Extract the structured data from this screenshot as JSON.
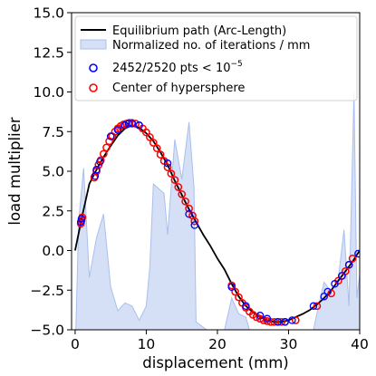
{
  "chart_data": {
    "type": "line",
    "xlabel": "displacement (mm)",
    "ylabel": "load multiplier",
    "xlim": [
      -0.5,
      40
    ],
    "ylim": [
      -5.0,
      15.0
    ],
    "xticks": [
      0,
      10,
      20,
      30,
      40
    ],
    "yticks": [
      -5.0,
      -2.5,
      0.0,
      2.5,
      5.0,
      7.5,
      10.0,
      12.5,
      15.0
    ],
    "ytick_labels": [
      "−5.0",
      "−2.5",
      "0.0",
      "2.5",
      "5.0",
      "7.5",
      "10.0",
      "12.5",
      "15.0"
    ],
    "xtick_labels": [
      "0",
      "10",
      "20",
      "30",
      "40"
    ],
    "grid": false,
    "legend_position": "top-right",
    "colors": {
      "equilibrium_path": "#000000",
      "iterations_fill": "#d5e0f6",
      "iterations_edge": "#a9bfee",
      "converged_points": "#0000ff",
      "center_points": "#ff0000"
    },
    "legend": [
      {
        "label": "Equilibrium path (Arc-Length)",
        "kind": "line"
      },
      {
        "label": "Normalized no. of iterations / mm",
        "kind": "area"
      },
      {
        "label_prefix": "2452/2520 pts < 10",
        "label_exponent": "−5",
        "kind": "open-circle-blue"
      },
      {
        "label": "Center of hypersphere",
        "kind": "open-circle-red"
      }
    ],
    "series": [
      {
        "name": "Equilibrium path (Arc-Length)",
        "type": "line",
        "points": [
          [
            0,
            0
          ],
          [
            1,
            2.2
          ],
          [
            2,
            4.2
          ],
          [
            3,
            5.1
          ],
          [
            4,
            5.9
          ],
          [
            5,
            6.6
          ],
          [
            6,
            7.25
          ],
          [
            7,
            7.7
          ],
          [
            8,
            7.9
          ],
          [
            9,
            7.75
          ],
          [
            10,
            7.4
          ],
          [
            11,
            6.9
          ],
          [
            12,
            6.2
          ],
          [
            13,
            5.4
          ],
          [
            14,
            4.4
          ],
          [
            15,
            3.5
          ],
          [
            16,
            2.6
          ],
          [
            17,
            1.8
          ],
          [
            18,
            1.0
          ],
          [
            19,
            0.3
          ],
          [
            20,
            -0.5
          ],
          [
            21,
            -1.2
          ],
          [
            22,
            -2.1
          ],
          [
            23,
            -2.9
          ],
          [
            24,
            -3.5
          ],
          [
            25,
            -3.9
          ],
          [
            26,
            -4.2
          ],
          [
            27,
            -4.4
          ],
          [
            28,
            -4.5
          ],
          [
            29,
            -4.5
          ],
          [
            30,
            -4.4
          ],
          [
            31,
            -4.2
          ],
          [
            32,
            -4.0
          ],
          [
            33,
            -3.75
          ],
          [
            34,
            -3.4
          ],
          [
            35,
            -3.0
          ],
          [
            36,
            -2.5
          ],
          [
            37,
            -1.9
          ],
          [
            38,
            -1.3
          ],
          [
            39,
            -0.7
          ],
          [
            40,
            0.0
          ]
        ]
      },
      {
        "name": "Normalized no. of iterations / mm",
        "type": "area",
        "points": [
          [
            -0.3,
            -5
          ],
          [
            0.1,
            -5
          ],
          [
            0.5,
            1.9
          ],
          [
            1.2,
            5.2
          ],
          [
            2.0,
            -1.7
          ],
          [
            3.0,
            0.8
          ],
          [
            4.0,
            2.3
          ],
          [
            5.0,
            -2.3
          ],
          [
            6.0,
            -3.8
          ],
          [
            7.0,
            -3.3
          ],
          [
            8.0,
            -3.5
          ],
          [
            9.0,
            -4.4
          ],
          [
            10.0,
            -3.5
          ],
          [
            10.5,
            -1.0
          ],
          [
            11.0,
            4.2
          ],
          [
            12.5,
            3.6
          ],
          [
            13.0,
            1.0
          ],
          [
            14.0,
            7.0
          ],
          [
            15.0,
            4.5
          ],
          [
            16.0,
            8.1
          ],
          [
            16.7,
            4.0
          ],
          [
            17.0,
            -4.5
          ],
          [
            18.5,
            -5.0
          ],
          [
            21.0,
            -5.0
          ],
          [
            22.0,
            -3.0
          ],
          [
            23.0,
            -4.0
          ],
          [
            24.0,
            -4.2
          ],
          [
            24.5,
            -5.0
          ],
          [
            33.5,
            -5.0
          ],
          [
            34.2,
            -3.5
          ],
          [
            35.0,
            -2.0
          ],
          [
            36.0,
            -2.6
          ],
          [
            37.0,
            -1.8
          ],
          [
            37.8,
            1.3
          ],
          [
            38.5,
            -3.5
          ],
          [
            39.2,
            10.0
          ],
          [
            39.6,
            -3.0
          ],
          [
            40.0,
            -1.5
          ]
        ]
      },
      {
        "name": "2452/2520 pts < 10−5",
        "type": "scatter",
        "points": [
          [
            0.8,
            1.8
          ],
          [
            0.9,
            2.0
          ],
          [
            2.8,
            4.7
          ],
          [
            3.0,
            5.1
          ],
          [
            3.5,
            5.6
          ],
          [
            5.0,
            7.2
          ],
          [
            6.0,
            7.6
          ],
          [
            7.0,
            7.9
          ],
          [
            7.5,
            8.0
          ],
          [
            8.0,
            8.0
          ],
          [
            9.0,
            7.9
          ],
          [
            13.0,
            5.5
          ],
          [
            16.0,
            2.3
          ],
          [
            16.8,
            1.6
          ],
          [
            22.0,
            -2.3
          ],
          [
            24.0,
            -3.5
          ],
          [
            26.0,
            -4.1
          ],
          [
            27.0,
            -4.3
          ],
          [
            28.5,
            -4.5
          ],
          [
            29.5,
            -4.5
          ],
          [
            30.5,
            -4.4
          ],
          [
            33.5,
            -3.5
          ],
          [
            35.0,
            -2.9
          ],
          [
            35.5,
            -2.6
          ],
          [
            36.5,
            -2.1
          ],
          [
            37.5,
            -1.6
          ],
          [
            38.5,
            -0.9
          ],
          [
            39.8,
            -0.2
          ]
        ]
      },
      {
        "name": "Center of hypersphere",
        "type": "scatter",
        "points": [
          [
            0.8,
            1.7
          ],
          [
            0.9,
            1.9
          ],
          [
            1.0,
            2.1
          ],
          [
            2.7,
            4.6
          ],
          [
            3.0,
            5.0
          ],
          [
            3.3,
            5.4
          ],
          [
            3.6,
            5.7
          ],
          [
            4.0,
            6.1
          ],
          [
            4.4,
            6.5
          ],
          [
            4.8,
            6.9
          ],
          [
            5.2,
            7.2
          ],
          [
            5.6,
            7.5
          ],
          [
            6.0,
            7.7
          ],
          [
            6.4,
            7.85
          ],
          [
            6.8,
            7.95
          ],
          [
            7.2,
            8.0
          ],
          [
            7.6,
            8.05
          ],
          [
            8.0,
            8.05
          ],
          [
            8.5,
            8.0
          ],
          [
            9.0,
            7.9
          ],
          [
            9.5,
            7.7
          ],
          [
            10.0,
            7.45
          ],
          [
            10.5,
            7.15
          ],
          [
            11.0,
            6.8
          ],
          [
            11.5,
            6.45
          ],
          [
            12.0,
            6.05
          ],
          [
            12.5,
            5.65
          ],
          [
            13.0,
            5.25
          ],
          [
            13.5,
            4.85
          ],
          [
            14.0,
            4.45
          ],
          [
            14.5,
            4.0
          ],
          [
            15.0,
            3.55
          ],
          [
            15.5,
            3.1
          ],
          [
            16.0,
            2.65
          ],
          [
            16.5,
            2.2
          ],
          [
            16.8,
            1.85
          ],
          [
            22.0,
            -2.2
          ],
          [
            22.5,
            -2.6
          ],
          [
            23.0,
            -2.95
          ],
          [
            23.5,
            -3.3
          ],
          [
            24.0,
            -3.6
          ],
          [
            24.5,
            -3.85
          ],
          [
            25.0,
            -4.05
          ],
          [
            25.5,
            -4.2
          ],
          [
            26.0,
            -4.3
          ],
          [
            26.5,
            -4.4
          ],
          [
            27.0,
            -4.45
          ],
          [
            27.5,
            -4.5
          ],
          [
            28.0,
            -4.5
          ],
          [
            28.5,
            -4.5
          ],
          [
            29.0,
            -4.5
          ],
          [
            29.5,
            -4.5
          ],
          [
            31.0,
            -4.4
          ],
          [
            34.0,
            -3.5
          ],
          [
            36.0,
            -2.7
          ],
          [
            37.0,
            -1.9
          ],
          [
            37.5,
            -1.6
          ],
          [
            38.0,
            -1.3
          ],
          [
            38.5,
            -0.9
          ],
          [
            39.0,
            -0.5
          ]
        ]
      }
    ]
  }
}
